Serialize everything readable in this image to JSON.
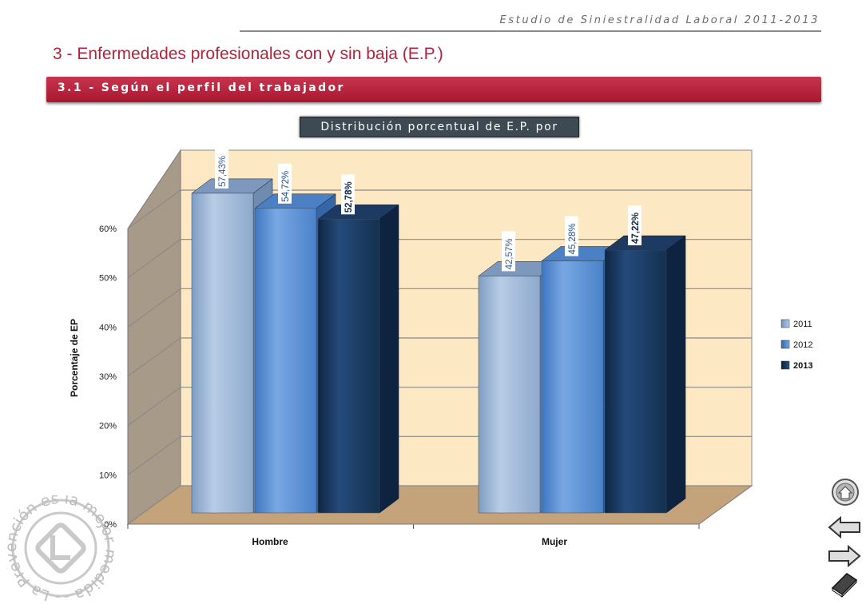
{
  "header": {
    "study_title": "Estudio de Siniestralidad Laboral 2011-2013",
    "section_title": "3 - Enfermedades profesionales con y sin baja (E.P.)",
    "subsection_title": "3.1 - Según el perfil del trabajador"
  },
  "chart_data": {
    "type": "bar",
    "title": "Distribución porcentual de E.P. por género",
    "xlabel": "",
    "ylabel": "Porcentaje de EP",
    "categories": [
      "Hombre",
      "Mujer"
    ],
    "yticks": [
      "0%",
      "10%",
      "20%",
      "30%",
      "40%",
      "50%",
      "60%"
    ],
    "ylim": [
      0,
      60
    ],
    "grid": true,
    "legend_position": "right",
    "series": [
      {
        "name": "2011",
        "values": [
          57.43,
          42.57
        ],
        "labels": [
          "57,43%",
          "42,57%"
        ],
        "color": "#95b3d7"
      },
      {
        "name": "2012",
        "values": [
          54.72,
          45.28
        ],
        "labels": [
          "54,72%",
          "45,28%"
        ],
        "color": "#558ed5"
      },
      {
        "name": "2013",
        "values": [
          52.78,
          47.22
        ],
        "labels": [
          "52,78%",
          "47,22%"
        ],
        "color": "#17365d"
      }
    ]
  },
  "logo": {
    "text": "- La Prevención es la mejor medida -"
  },
  "nav": {
    "home": "home-icon",
    "back": "arrow-left-icon",
    "forward": "arrow-right-icon",
    "book": "book-icon"
  }
}
